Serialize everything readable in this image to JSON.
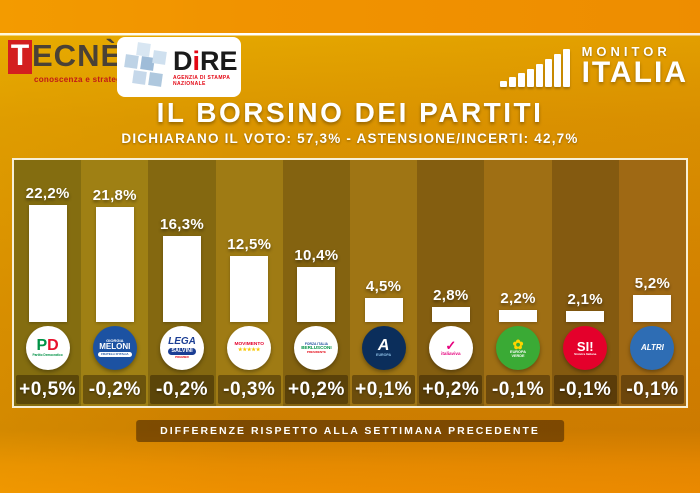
{
  "header": {
    "tecne": {
      "t": "T",
      "rest": "ECNÈ",
      "reg": "®",
      "tagline": "conoscenza e strategie"
    },
    "dire": {
      "d": "D",
      "i": "i",
      "re": "RE",
      "tagline": "AGENZIA DI STAMPA NAZIONALE"
    },
    "monitor": {
      "line1": "MONITOR",
      "line2": "ITALIA"
    }
  },
  "title": "IL BORSINO DEI PARTITI",
  "subtitle": "DICHIARANO IL VOTO: 57,3% - ASTENSIONE/INCERTI: 42,7%",
  "caption": "DIFFERENZE RISPETTO ALLA SETTIMANA PRECEDENTE",
  "colors": {
    "top_band": "#F19300",
    "panel_border": "#F7EFD6",
    "bar": "#FFFFFF",
    "text": "#FFFFFF"
  },
  "chart_data": {
    "type": "bar",
    "title": "IL BORSINO DEI PARTITI",
    "subtitle": "DICHIARANO IL VOTO: 57,3% - ASTENSIONE/INCERTI: 42,7%",
    "footnote": "DIFFERENZE RISPETTO ALLA SETTIMANA PRECEDENTE",
    "ylabel": "",
    "xlabel": "",
    "ylim": [
      0,
      24
    ],
    "bar_color": "#FFFFFF",
    "categories": [
      "PD - PARTITO DEMOCRATICO",
      "FRATELLI D'ITALIA - MELONI",
      "LEGA - SALVINI",
      "MOVIMENTO 5 STELLE",
      "FORZA ITALIA - BERLUSCONI",
      "AZIONE / +EUROPA",
      "ITALIA VIVA",
      "EUROPA VERDE",
      "SINISTRA ITALIANA",
      "ALTRI"
    ],
    "values": [
      22.2,
      21.8,
      16.3,
      12.5,
      10.4,
      4.5,
      2.8,
      2.2,
      2.1,
      5.2
    ],
    "value_labels": [
      "22,2%",
      "21,8%",
      "16,3%",
      "12,5%",
      "10,4%",
      "4,5%",
      "2,8%",
      "2,2%",
      "2,1%",
      "5,2%"
    ],
    "diffs": [
      "+0,5%",
      "-0,2%",
      "-0,2%",
      "-0,3%",
      "+0,2%",
      "+0,1%",
      "+0,2%",
      "-0,1%",
      "-0,1%",
      "-0,1%"
    ],
    "logos": [
      {
        "bg": "#FFFFFF",
        "lines": [
          {
            "size": 16,
            "weight": 900,
            "parts": [
              {
                "text": "P",
                "color": "#009246"
              },
              {
                "text": "D",
                "color": "#E8112D"
              }
            ]
          },
          {
            "text": "Partito Democratico",
            "size": 3.2,
            "weight": 700,
            "color": "#009246"
          }
        ]
      },
      {
        "bg": "#1C52A2",
        "lines": [
          {
            "text": "GIORGIA",
            "size": 4,
            "weight": 700,
            "color": "#FFFFFF"
          },
          {
            "text": "MELONI",
            "size": 8,
            "weight": 900,
            "color": "#FFFFFF"
          },
          {
            "text": "FRATELLI D'ITALIA",
            "size": 3,
            "weight": 900,
            "color": "#1C52A2",
            "pill": "#FFFFFF"
          }
        ]
      },
      {
        "bg": "#FFFFFF",
        "lines": [
          {
            "text": "LEGA",
            "size": 10,
            "weight": 900,
            "color": "#1B3E94",
            "italic": true
          },
          {
            "text": "SALVINI",
            "size": 5.5,
            "weight": 900,
            "color": "#FFFFFF",
            "pill": "#1B3E94"
          },
          {
            "text": "PREMIER",
            "size": 3,
            "weight": 700,
            "color": "#E30613"
          }
        ]
      },
      {
        "bg": "#FFFFFF",
        "lines": [
          {
            "text": "MOVIMENTO",
            "size": 4.8,
            "weight": 900,
            "color": "#E4002B"
          },
          {
            "text": "★★★★★",
            "size": 5,
            "weight": 700,
            "color": "#F7C600"
          }
        ]
      },
      {
        "bg": "#FFFFFF",
        "lines": [
          {
            "text": "FORZA ITALIA",
            "size": 3.4,
            "weight": 900,
            "color": "#1B4F9C"
          },
          {
            "text": "BERLUSCONI",
            "size": 4.6,
            "weight": 900,
            "color": "#009246"
          },
          {
            "text": "PRESIDENTE",
            "size": 3,
            "weight": 700,
            "color": "#E30613"
          }
        ]
      },
      {
        "bg": "#0B2E5B",
        "lines": [
          {
            "text": "A",
            "size": 16,
            "weight": 900,
            "color": "#FFFFFF",
            "italic": true
          },
          {
            "text": "EUROPA",
            "size": 3.6,
            "weight": 700,
            "color": "#8FC1E8"
          }
        ]
      },
      {
        "bg": "#FFFFFF",
        "lines": [
          {
            "text": "✓",
            "size": 13,
            "weight": 900,
            "color": "#E6007E"
          },
          {
            "text": "italiaviva",
            "size": 4.6,
            "weight": 700,
            "color": "#E6007E"
          }
        ]
      },
      {
        "bg": "#3AAA35",
        "lines": [
          {
            "text": "✿",
            "size": 13,
            "weight": 700,
            "color": "#FFD500"
          },
          {
            "text": "EUROPA",
            "size": 3.8,
            "weight": 900,
            "color": "#FFFFFF"
          },
          {
            "text": "VERDE",
            "size": 3.8,
            "weight": 900,
            "color": "#FFFFFF"
          }
        ]
      },
      {
        "bg": "#E4002B",
        "lines": [
          {
            "text": "SI!",
            "size": 13,
            "weight": 900,
            "color": "#FFFFFF"
          },
          {
            "text": "Sinistra Italiana",
            "size": 3,
            "weight": 700,
            "color": "#FFFFFF"
          }
        ]
      },
      {
        "bg": "#2E6DB4",
        "lines": [
          {
            "text": "ALTRI",
            "size": 8,
            "weight": 900,
            "color": "#FFFFFF",
            "italic": true
          }
        ]
      }
    ]
  }
}
